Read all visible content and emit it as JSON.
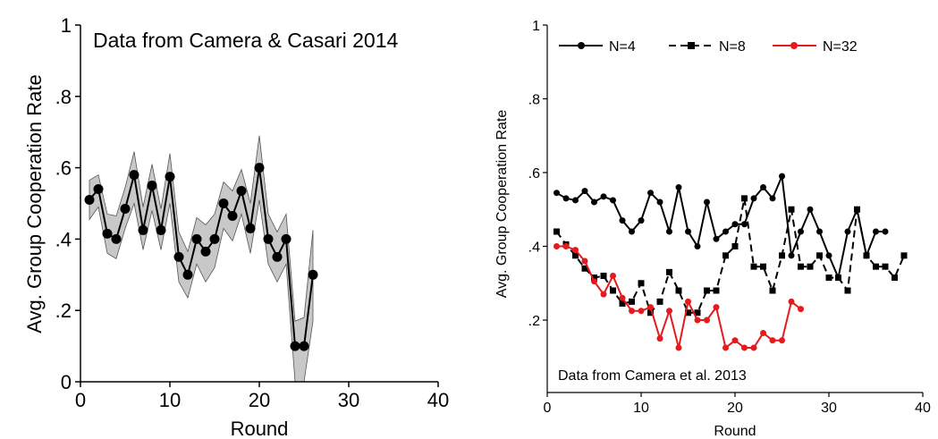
{
  "chart_data": [
    {
      "type": "line",
      "title": "Data from Camera & Casari 2014",
      "xlabel": "Round",
      "ylabel": "Avg. Group Cooperation Rate",
      "xlim": [
        0,
        40
      ],
      "ylim": [
        0,
        1
      ],
      "xticks": [
        "0",
        "10",
        "20",
        "30",
        "40"
      ],
      "yticks": [
        "0",
        ".2",
        ".4",
        ".6",
        ".8",
        "1"
      ],
      "grid": false,
      "legend": "none",
      "colors": {
        "line": "#000000",
        "band": "#c8c8c8"
      },
      "series": [
        {
          "x": [
            1,
            2,
            3,
            4,
            5,
            6,
            7,
            8,
            9,
            10,
            11,
            12,
            13,
            14,
            15,
            16,
            17,
            18,
            19,
            20,
            21,
            22,
            23,
            24,
            25,
            26
          ],
          "values": [
            0.51,
            0.54,
            0.415,
            0.4,
            0.485,
            0.58,
            0.425,
            0.55,
            0.425,
            0.575,
            0.35,
            0.3,
            0.4,
            0.365,
            0.4,
            0.5,
            0.465,
            0.535,
            0.43,
            0.6,
            0.4,
            0.35,
            0.4,
            0.1,
            0.1,
            0.3
          ],
          "lower": [
            0.455,
            0.49,
            0.36,
            0.345,
            0.43,
            0.5,
            0.37,
            0.48,
            0.37,
            0.5,
            0.28,
            0.235,
            0.33,
            0.28,
            0.32,
            0.43,
            0.395,
            0.47,
            0.36,
            0.51,
            0.33,
            0.28,
            0.33,
            0.0,
            0.0,
            0.17
          ],
          "upper": [
            0.565,
            0.58,
            0.47,
            0.465,
            0.545,
            0.645,
            0.49,
            0.61,
            0.485,
            0.64,
            0.42,
            0.365,
            0.46,
            0.44,
            0.47,
            0.56,
            0.535,
            0.595,
            0.5,
            0.69,
            0.47,
            0.42,
            0.47,
            0.17,
            0.18,
            0.425
          ]
        }
      ]
    },
    {
      "type": "line",
      "annotation": "Data from Camera et al. 2013",
      "xlabel": "Round",
      "ylabel": "Avg. Group Cooperation Rate",
      "xlim": [
        0,
        40
      ],
      "ylim": [
        0.2,
        1
      ],
      "xticks": [
        "0",
        "10",
        "20",
        "30",
        "40"
      ],
      "yticks": [
        ".2",
        ".4",
        ".6",
        ".8",
        "1"
      ],
      "grid": false,
      "legend": "top",
      "series": [
        {
          "name": "N=4",
          "color": "#000000",
          "style": "solid",
          "marker": "circle",
          "x": [
            1,
            2,
            3,
            4,
            5,
            6,
            7,
            8,
            9,
            10,
            11,
            12,
            13,
            14,
            15,
            16,
            17,
            18,
            19,
            20,
            21,
            22,
            23,
            24,
            25,
            26,
            27,
            28,
            29,
            30,
            31,
            32,
            33,
            34,
            35,
            36
          ],
          "values": [
            0.545,
            0.53,
            0.525,
            0.55,
            0.52,
            0.535,
            0.525,
            0.47,
            0.44,
            0.47,
            0.545,
            0.52,
            0.44,
            0.56,
            0.44,
            0.4,
            0.52,
            0.42,
            0.44,
            0.46,
            0.46,
            0.53,
            0.56,
            0.53,
            0.59,
            0.375,
            0.44,
            0.5,
            0.44,
            0.375,
            0.315,
            0.44,
            0.5,
            0.375,
            0.44,
            0.44
          ]
        },
        {
          "name": "N=8",
          "color": "#000000",
          "style": "dashed",
          "marker": "square",
          "x": [
            1,
            2,
            3,
            4,
            5,
            6,
            7,
            8,
            9,
            10,
            11,
            12,
            13,
            14,
            15,
            16,
            17,
            18,
            19,
            20,
            21,
            22,
            23,
            24,
            25,
            26,
            27,
            28,
            29,
            30,
            31,
            32,
            33,
            34,
            35,
            36,
            37,
            38
          ],
          "values": [
            0.44,
            0.405,
            0.375,
            0.34,
            0.315,
            0.32,
            0.28,
            0.245,
            0.25,
            0.3,
            0.22,
            0.25,
            0.33,
            0.28,
            0.22,
            0.22,
            0.28,
            0.28,
            0.375,
            0.4,
            0.53,
            0.345,
            0.345,
            0.28,
            0.375,
            0.5,
            0.345,
            0.345,
            0.375,
            0.315,
            0.315,
            0.28,
            0.5,
            0.375,
            0.345,
            0.345,
            0.315,
            0.375
          ]
        },
        {
          "name": "N=32",
          "color": "#e41a1c",
          "style": "solid",
          "marker": "circle",
          "x": [
            1,
            2,
            3,
            4,
            5,
            6,
            7,
            8,
            9,
            10,
            11,
            12,
            13,
            14,
            15,
            16,
            17,
            18,
            19,
            20,
            21,
            22,
            23,
            24,
            25,
            26,
            27
          ],
          "values": [
            0.4,
            0.4,
            0.39,
            0.36,
            0.305,
            0.27,
            0.32,
            0.26,
            0.225,
            0.225,
            0.235,
            0.15,
            0.225,
            0.125,
            0.25,
            0.2,
            0.2,
            0.235,
            0.125,
            0.145,
            0.125,
            0.125,
            0.165,
            0.145,
            0.145,
            0.25,
            0.23
          ]
        }
      ]
    }
  ]
}
